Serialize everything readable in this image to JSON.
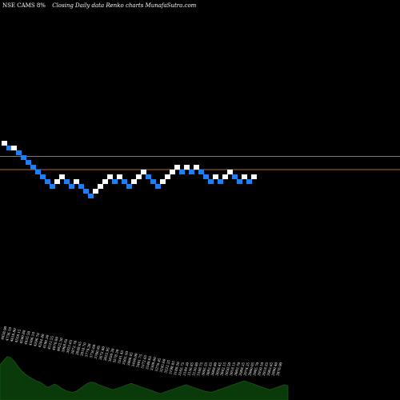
{
  "header": {
    "symbol_text": "NSE CAMS 8%",
    "subtitle_text": "Closing Daily data  Renko  charts MunafaSutra.com"
  },
  "chart_data": {
    "type": "renko",
    "title": "NSE CAMS 8%",
    "subtitle": "Closing Daily data Renko charts MunafaSutra.com",
    "colors": {
      "background": "#000000",
      "up_brick": "#ffffff",
      "down_brick": "#1e7ff0",
      "reference_line": "#b46a34",
      "volume_area": "#0a3a0a",
      "volume_edge": "#1a6a1a",
      "label_text": "#ffffff"
    },
    "reference_lines_relative_level": [
      6.75,
      4.0
    ],
    "bricks": [
      {
        "level": 10,
        "dir": "up"
      },
      {
        "level": 9,
        "dir": "down"
      },
      {
        "level": 9,
        "dir": "up"
      },
      {
        "level": 8,
        "dir": "down"
      },
      {
        "level": 7,
        "dir": "down"
      },
      {
        "level": 6,
        "dir": "down"
      },
      {
        "level": 5,
        "dir": "down"
      },
      {
        "level": 4,
        "dir": "down"
      },
      {
        "level": 3,
        "dir": "down"
      },
      {
        "level": 2,
        "dir": "down"
      },
      {
        "level": 1,
        "dir": "down"
      },
      {
        "level": 2,
        "dir": "up"
      },
      {
        "level": 3,
        "dir": "up"
      },
      {
        "level": 2,
        "dir": "down"
      },
      {
        "level": 1,
        "dir": "down"
      },
      {
        "level": 2,
        "dir": "up"
      },
      {
        "level": 1,
        "dir": "down"
      },
      {
        "level": 0,
        "dir": "down"
      },
      {
        "level": -1,
        "dir": "down"
      },
      {
        "level": 0,
        "dir": "up"
      },
      {
        "level": 1,
        "dir": "up"
      },
      {
        "level": 2,
        "dir": "up"
      },
      {
        "level": 3,
        "dir": "up"
      },
      {
        "level": 2,
        "dir": "down"
      },
      {
        "level": 3,
        "dir": "up"
      },
      {
        "level": 2,
        "dir": "down"
      },
      {
        "level": 1,
        "dir": "down"
      },
      {
        "level": 2,
        "dir": "up"
      },
      {
        "level": 3,
        "dir": "up"
      },
      {
        "level": 4,
        "dir": "up"
      },
      {
        "level": 3,
        "dir": "down"
      },
      {
        "level": 2,
        "dir": "down"
      },
      {
        "level": 1,
        "dir": "down"
      },
      {
        "level": 2,
        "dir": "up"
      },
      {
        "level": 3,
        "dir": "up"
      },
      {
        "level": 4,
        "dir": "up"
      },
      {
        "level": 5,
        "dir": "up"
      },
      {
        "level": 4,
        "dir": "down"
      },
      {
        "level": 5,
        "dir": "up"
      },
      {
        "level": 4,
        "dir": "down"
      },
      {
        "level": 5,
        "dir": "up"
      },
      {
        "level": 4,
        "dir": "down"
      },
      {
        "level": 3,
        "dir": "down"
      },
      {
        "level": 2,
        "dir": "down"
      },
      {
        "level": 3,
        "dir": "up"
      },
      {
        "level": 2,
        "dir": "down"
      },
      {
        "level": 3,
        "dir": "up"
      },
      {
        "level": 4,
        "dir": "up"
      },
      {
        "level": 3,
        "dir": "down"
      },
      {
        "level": 2,
        "dir": "down"
      },
      {
        "level": 3,
        "dir": "up"
      },
      {
        "level": 2,
        "dir": "down"
      },
      {
        "level": 3,
        "dir": "up"
      }
    ],
    "volume_profile": [
      0.55,
      0.62,
      0.68,
      0.66,
      0.6,
      0.52,
      0.45,
      0.4,
      0.36,
      0.33,
      0.3,
      0.28,
      0.24,
      0.2,
      0.22,
      0.25,
      0.22,
      0.18,
      0.15,
      0.13,
      0.12,
      0.14,
      0.18,
      0.22,
      0.26,
      0.28,
      0.27,
      0.24,
      0.22,
      0.2,
      0.18,
      0.16,
      0.18,
      0.2,
      0.22,
      0.24,
      0.26,
      0.24,
      0.22,
      0.2,
      0.18,
      0.16,
      0.14,
      0.12,
      0.1,
      0.12,
      0.14,
      0.16,
      0.18,
      0.2,
      0.22,
      0.24,
      0.22,
      0.2,
      0.18,
      0.16,
      0.14,
      0.13,
      0.12,
      0.14,
      0.16,
      0.18,
      0.2,
      0.22,
      0.24,
      0.26,
      0.28,
      0.3,
      0.28,
      0.26,
      0.24,
      0.22,
      0.2,
      0.18,
      0.16,
      0.18,
      0.2,
      0.22,
      0.24,
      0.22
    ],
    "price_labels": [
      "4838.90",
      "4736.10",
      "4610.80",
      "4558.15",
      "4500.80",
      "4435.50",
      "4366.10",
      "4296.70",
      "4244.40",
      "4190.30",
      "4123.55",
      "4070.80",
      "4022.30",
      "3968.65",
      "3923.65",
      "3872.70",
      "3849.65",
      "3818.70",
      "3779.20",
      "3736.60",
      "3700.95",
      "3672.80",
      "3652.95",
      "3620.20",
      "3578.30",
      "3541.45",
      "3502.50",
      "3466.45",
      "3430.00",
      "3401.75",
      "3372.65",
      "3340.85",
      "3309.60",
      "3276.45",
      "3245.60",
      "3222.25",
      "3198.85",
      "3180.20",
      "3165.75",
      "3149.30",
      "3136.85",
      "3120.80",
      "3108.75",
      "3095.25",
      "3082.25",
      "3068.80",
      "3056.45",
      "3042.15",
      "3030.50",
      "3018.15",
      "3002.70",
      "2988.35",
      "2974.25",
      "2960.05",
      "2945.70",
      "2930.10",
      "2918.25",
      "2903.65",
      "2890.40",
      "2876.90"
    ]
  }
}
